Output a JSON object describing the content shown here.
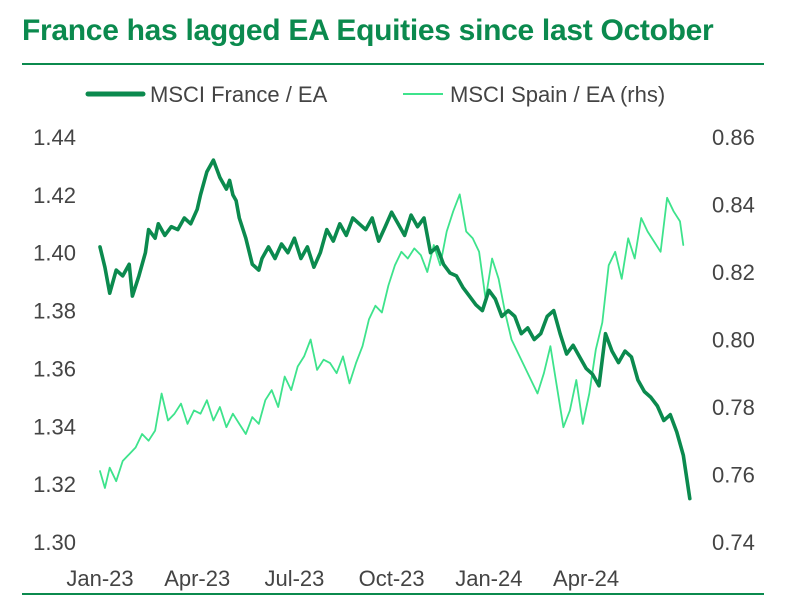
{
  "chart_data": {
    "type": "line",
    "title": "France has lagged EA Equities since last October",
    "legend": [
      "MSCI France / EA",
      "MSCI Spain / EA (rhs)"
    ],
    "x_tick_labels": [
      "Jan-23",
      "Apr-23",
      "Jul-23",
      "Oct-23",
      "Jan-24",
      "Apr-24"
    ],
    "y_left": {
      "min": 1.3,
      "max": 1.44,
      "ticks": [
        "1.30",
        "1.32",
        "1.34",
        "1.36",
        "1.38",
        "1.40",
        "1.42",
        "1.44"
      ]
    },
    "y_right": {
      "min": 0.74,
      "max": 0.86,
      "ticks": [
        "0.74",
        "0.76",
        "0.78",
        "0.80",
        "0.82",
        "0.84",
        "0.86"
      ]
    },
    "x_range_months": [
      0,
      18.3
    ],
    "series": [
      {
        "name": "MSCI France / EA",
        "axis": "left",
        "color": "#0b8a4e",
        "x": [
          0,
          0.15,
          0.3,
          0.5,
          0.7,
          0.9,
          1.0,
          1.2,
          1.4,
          1.5,
          1.7,
          1.8,
          2.0,
          2.2,
          2.4,
          2.6,
          2.8,
          3.0,
          3.1,
          3.3,
          3.5,
          3.7,
          3.9,
          4.0,
          4.1,
          4.2,
          4.3,
          4.5,
          4.7,
          4.9,
          5.0,
          5.2,
          5.4,
          5.6,
          5.8,
          6.0,
          6.2,
          6.4,
          6.6,
          6.8,
          7.0,
          7.2,
          7.4,
          7.6,
          7.8,
          8.0,
          8.2,
          8.4,
          8.6,
          8.8,
          9.0,
          9.2,
          9.4,
          9.6,
          9.8,
          10.0,
          10.2,
          10.4,
          10.6,
          10.8,
          11.0,
          11.2,
          11.4,
          11.6,
          11.8,
          12.0,
          12.2,
          12.4,
          12.6,
          12.8,
          13.0,
          13.2,
          13.4,
          13.6,
          13.8,
          14.0,
          14.2,
          14.4,
          14.6,
          14.8,
          15.0,
          15.2,
          15.4,
          15.6,
          15.8,
          16.0,
          16.2,
          16.4,
          16.6,
          16.8,
          17.0,
          17.2,
          17.4,
          17.6,
          17.8,
          18.0,
          18.2
        ],
        "values": [
          1.402,
          1.395,
          1.386,
          1.394,
          1.392,
          1.396,
          1.385,
          1.392,
          1.4,
          1.408,
          1.405,
          1.41,
          1.406,
          1.409,
          1.408,
          1.412,
          1.41,
          1.415,
          1.42,
          1.428,
          1.432,
          1.426,
          1.422,
          1.425,
          1.42,
          1.418,
          1.412,
          1.405,
          1.396,
          1.394,
          1.398,
          1.402,
          1.398,
          1.403,
          1.4,
          1.405,
          1.398,
          1.402,
          1.395,
          1.4,
          1.408,
          1.404,
          1.41,
          1.406,
          1.412,
          1.41,
          1.408,
          1.412,
          1.404,
          1.409,
          1.414,
          1.41,
          1.406,
          1.413,
          1.409,
          1.412,
          1.4,
          1.402,
          1.396,
          1.393,
          1.392,
          1.388,
          1.385,
          1.382,
          1.38,
          1.387,
          1.384,
          1.378,
          1.38,
          1.378,
          1.372,
          1.374,
          1.37,
          1.372,
          1.378,
          1.38,
          1.372,
          1.365,
          1.368,
          1.364,
          1.36,
          1.358,
          1.354,
          1.372,
          1.366,
          1.362,
          1.366,
          1.364,
          1.356,
          1.352,
          1.35,
          1.347,
          1.342,
          1.344,
          1.338,
          1.33,
          1.315
        ]
      },
      {
        "name": "MSCI Spain / EA (rhs)",
        "axis": "right",
        "color": "#3ee38c",
        "x": [
          0,
          0.15,
          0.3,
          0.5,
          0.7,
          0.9,
          1.1,
          1.3,
          1.5,
          1.7,
          1.9,
          2.1,
          2.3,
          2.5,
          2.7,
          2.9,
          3.1,
          3.3,
          3.5,
          3.7,
          3.9,
          4.1,
          4.3,
          4.5,
          4.7,
          4.9,
          5.1,
          5.3,
          5.5,
          5.7,
          5.9,
          6.1,
          6.3,
          6.5,
          6.7,
          6.9,
          7.1,
          7.3,
          7.5,
          7.7,
          7.9,
          8.1,
          8.3,
          8.5,
          8.7,
          8.9,
          9.1,
          9.3,
          9.5,
          9.7,
          9.9,
          10.1,
          10.3,
          10.5,
          10.7,
          10.9,
          11.1,
          11.3,
          11.5,
          11.7,
          11.9,
          12.1,
          12.3,
          12.5,
          12.7,
          12.9,
          13.1,
          13.3,
          13.5,
          13.7,
          13.9,
          14.1,
          14.3,
          14.5,
          14.7,
          14.9,
          15.1,
          15.3,
          15.5,
          15.7,
          15.9,
          16.1,
          16.3,
          16.5,
          16.7,
          16.9,
          17.1,
          17.3,
          17.5,
          17.7,
          17.9,
          18.0
        ],
        "values": [
          0.761,
          0.756,
          0.762,
          0.758,
          0.764,
          0.766,
          0.768,
          0.772,
          0.77,
          0.773,
          0.784,
          0.776,
          0.778,
          0.781,
          0.775,
          0.779,
          0.778,
          0.782,
          0.776,
          0.78,
          0.774,
          0.778,
          0.775,
          0.772,
          0.777,
          0.775,
          0.782,
          0.785,
          0.78,
          0.789,
          0.785,
          0.792,
          0.795,
          0.8,
          0.791,
          0.794,
          0.793,
          0.79,
          0.795,
          0.787,
          0.793,
          0.798,
          0.806,
          0.81,
          0.808,
          0.816,
          0.822,
          0.826,
          0.824,
          0.827,
          0.825,
          0.82,
          0.828,
          0.822,
          0.832,
          0.838,
          0.843,
          0.832,
          0.83,
          0.826,
          0.812,
          0.824,
          0.818,
          0.808,
          0.8,
          0.796,
          0.792,
          0.788,
          0.784,
          0.79,
          0.798,
          0.786,
          0.774,
          0.779,
          0.788,
          0.775,
          0.784,
          0.797,
          0.805,
          0.822,
          0.826,
          0.818,
          0.83,
          0.824,
          0.836,
          0.832,
          0.829,
          0.826,
          0.842,
          0.838,
          0.835,
          0.828
        ]
      }
    ]
  }
}
